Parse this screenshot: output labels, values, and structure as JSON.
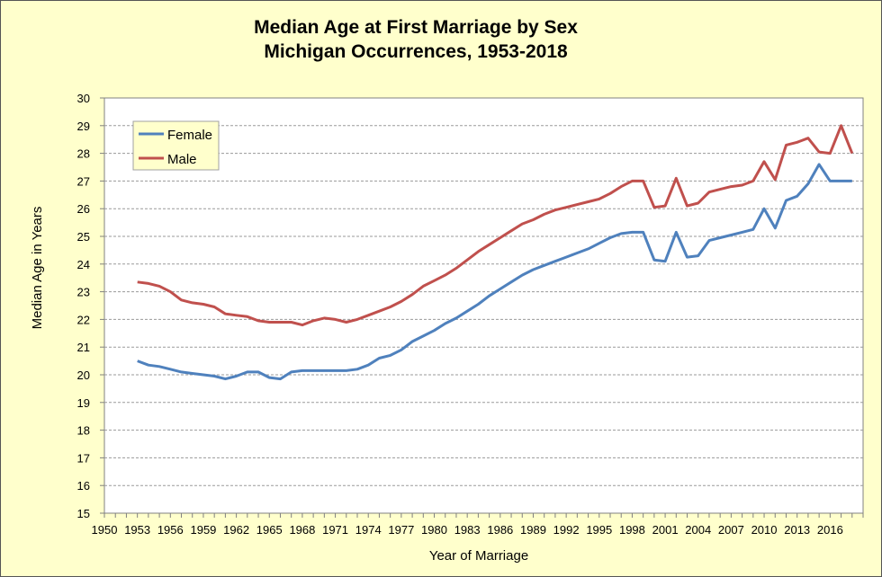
{
  "chart_data": {
    "type": "line",
    "title": [
      "Median Age at First Marriage by Sex",
      "Michigan Occurrences,  1953-2018"
    ],
    "xlabel": "Year of Marriage",
    "ylabel": "Median Age in Years",
    "xlim": [
      1950,
      2019
    ],
    "ylim": [
      15,
      30
    ],
    "x_ticks": [
      "1950",
      "1953",
      "1956",
      "1959",
      "1962",
      "1965",
      "1968",
      "1971",
      "1974",
      "1977",
      "1980",
      "1983",
      "1986",
      "1989",
      "1992",
      "1995",
      "1998",
      "2001",
      "2004",
      "2007",
      "2010",
      "2013",
      "2016"
    ],
    "y_ticks": [
      "15",
      "16",
      "17",
      "18",
      "19",
      "20",
      "21",
      "22",
      "23",
      "24",
      "25",
      "26",
      "27",
      "28",
      "29",
      "30"
    ],
    "grid": "horizontal",
    "legend": "top-left",
    "plot_background": "#ffffff",
    "frame_background": "#ffffcc",
    "x": [
      1953,
      1954,
      1955,
      1956,
      1957,
      1958,
      1959,
      1960,
      1961,
      1962,
      1963,
      1964,
      1965,
      1966,
      1967,
      1968,
      1969,
      1970,
      1971,
      1972,
      1973,
      1974,
      1975,
      1976,
      1977,
      1978,
      1979,
      1980,
      1981,
      1982,
      1983,
      1984,
      1985,
      1986,
      1987,
      1988,
      1989,
      1990,
      1991,
      1992,
      1993,
      1994,
      1995,
      1996,
      1997,
      1998,
      1999,
      2000,
      2001,
      2002,
      2003,
      2004,
      2005,
      2006,
      2007,
      2008,
      2009,
      2010,
      2011,
      2012,
      2013,
      2014,
      2015,
      2016,
      2017,
      2018
    ],
    "series": [
      {
        "name": "Female",
        "color": "#4f81bd",
        "values": [
          20.5,
          20.35,
          20.3,
          20.2,
          20.1,
          20.05,
          20.0,
          19.95,
          19.85,
          19.95,
          20.1,
          20.1,
          19.9,
          19.85,
          20.1,
          20.15,
          20.15,
          20.15,
          20.15,
          20.15,
          20.2,
          20.35,
          20.6,
          20.7,
          20.9,
          21.2,
          21.4,
          21.6,
          21.85,
          22.05,
          22.3,
          22.55,
          22.85,
          23.1,
          23.35,
          23.6,
          23.8,
          23.95,
          24.1,
          24.25,
          24.4,
          24.55,
          24.75,
          24.95,
          25.1,
          25.15,
          25.15,
          24.15,
          24.1,
          25.15,
          24.25,
          24.3,
          24.85,
          24.95,
          25.05,
          25.15,
          25.25,
          26.0,
          25.3,
          26.3,
          26.45,
          26.9,
          27.6,
          27.0,
          27.0,
          27.0
        ]
      },
      {
        "name": "Male",
        "color": "#c0504d",
        "values": [
          23.35,
          23.3,
          23.2,
          23.0,
          22.7,
          22.6,
          22.55,
          22.45,
          22.2,
          22.15,
          22.1,
          21.95,
          21.9,
          21.9,
          21.9,
          21.8,
          21.95,
          22.05,
          22.0,
          21.9,
          22.0,
          22.15,
          22.3,
          22.45,
          22.65,
          22.9,
          23.2,
          23.4,
          23.6,
          23.85,
          24.15,
          24.45,
          24.7,
          24.95,
          25.2,
          25.45,
          25.6,
          25.8,
          25.95,
          26.05,
          26.15,
          26.25,
          26.35,
          26.55,
          26.8,
          27.0,
          27.0,
          26.05,
          26.1,
          27.1,
          26.1,
          26.2,
          26.6,
          26.7,
          26.8,
          26.85,
          27.0,
          27.7,
          27.05,
          28.3,
          28.4,
          28.55,
          28.05,
          28.0,
          29.0,
          28.0
        ]
      }
    ]
  }
}
